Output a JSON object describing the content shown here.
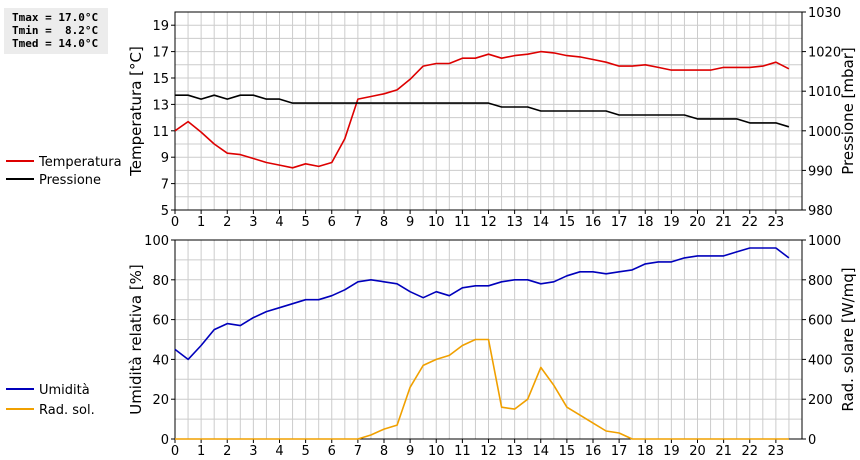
{
  "stats": {
    "tmax": "Tmax = 17.0°C",
    "tmin": "Tmin =  8.2°C",
    "tmed": "Tmed = 14.0°C"
  },
  "colors": {
    "temperature": "#dd0000",
    "pressure": "#000000",
    "humidity": "#0000bb",
    "solar": "#f0a000",
    "grid": "#cccccc"
  },
  "chart_data": [
    {
      "type": "line",
      "x": [
        0,
        0.5,
        1,
        1.5,
        2,
        2.5,
        3,
        3.5,
        4,
        4.5,
        5,
        5.5,
        6,
        6.5,
        7,
        7.5,
        8,
        8.5,
        9,
        9.5,
        10,
        10.5,
        11,
        11.5,
        12,
        12.5,
        13,
        13.5,
        14,
        14.5,
        15,
        15.5,
        16,
        16.5,
        17,
        17.5,
        18,
        18.5,
        19,
        19.5,
        20,
        20.5,
        21,
        21.5,
        22,
        22.5,
        23,
        23.5
      ],
      "xlim": [
        0,
        24
      ],
      "xticks": [
        0,
        1,
        2,
        3,
        4,
        5,
        6,
        7,
        8,
        9,
        10,
        11,
        12,
        13,
        14,
        15,
        16,
        17,
        18,
        19,
        20,
        21,
        22,
        23
      ],
      "ylabel": "Temperatura [°C]",
      "ylim": [
        5,
        20
      ],
      "yticks": [
        5,
        7,
        9,
        11,
        13,
        15,
        17,
        19
      ],
      "y2label": "Pressione [mbar]",
      "y2lim": [
        980,
        1030
      ],
      "y2ticks": [
        980,
        990,
        1000,
        1010,
        1020,
        1030
      ],
      "grid": true,
      "legend_position": "left",
      "series": [
        {
          "name": "Temperatura",
          "axis": "left",
          "color_key": "temperature",
          "values": [
            11.0,
            11.7,
            10.9,
            10.0,
            9.3,
            9.2,
            8.9,
            8.6,
            8.4,
            8.2,
            8.5,
            8.3,
            8.6,
            10.4,
            13.4,
            13.6,
            13.8,
            14.1,
            14.9,
            15.9,
            16.1,
            16.1,
            16.5,
            16.5,
            16.8,
            16.5,
            16.7,
            16.8,
            17.0,
            16.9,
            16.7,
            16.6,
            16.4,
            16.2,
            15.9,
            15.9,
            16.0,
            15.8,
            15.6,
            15.6,
            15.6,
            15.6,
            15.8,
            15.8,
            15.8,
            15.9,
            16.2,
            15.7
          ]
        },
        {
          "name": "Pressione",
          "axis": "right",
          "color_key": "pressure",
          "values": [
            1009,
            1009,
            1008,
            1009,
            1008,
            1009,
            1009,
            1008,
            1008,
            1007,
            1007,
            1007,
            1007,
            1007,
            1007,
            1007,
            1007,
            1007,
            1007,
            1007,
            1007,
            1007,
            1007,
            1007,
            1007,
            1006,
            1006,
            1006,
            1005,
            1005,
            1005,
            1005,
            1005,
            1005,
            1004,
            1004,
            1004,
            1004,
            1004,
            1004,
            1003,
            1003,
            1003,
            1003,
            1002,
            1002,
            1002,
            1001
          ]
        }
      ]
    },
    {
      "type": "line",
      "x": [
        0,
        0.5,
        1,
        1.5,
        2,
        2.5,
        3,
        3.5,
        4,
        4.5,
        5,
        5.5,
        6,
        6.5,
        7,
        7.5,
        8,
        8.5,
        9,
        9.5,
        10,
        10.5,
        11,
        11.5,
        12,
        12.5,
        13,
        13.5,
        14,
        14.5,
        15,
        15.5,
        16,
        16.5,
        17,
        17.5,
        18,
        18.5,
        19,
        19.5,
        20,
        20.5,
        21,
        21.5,
        22,
        22.5,
        23,
        23.5
      ],
      "xlim": [
        0,
        24
      ],
      "xticks": [
        0,
        1,
        2,
        3,
        4,
        5,
        6,
        7,
        8,
        9,
        10,
        11,
        12,
        13,
        14,
        15,
        16,
        17,
        18,
        19,
        20,
        21,
        22,
        23
      ],
      "ylabel": "Umidità relativa [%]",
      "ylim": [
        0,
        100
      ],
      "yticks": [
        0,
        20,
        40,
        60,
        80,
        100
      ],
      "y2label": "Rad. solare [W/mq]",
      "y2lim": [
        0,
        1000
      ],
      "y2ticks": [
        0,
        200,
        400,
        600,
        800,
        1000
      ],
      "grid": true,
      "legend_position": "left",
      "series": [
        {
          "name": "Umidità",
          "axis": "left",
          "color_key": "humidity",
          "values": [
            45,
            40,
            47,
            55,
            58,
            57,
            61,
            64,
            66,
            68,
            70,
            70,
            72,
            75,
            79,
            80,
            79,
            78,
            74,
            71,
            74,
            72,
            76,
            77,
            77,
            79,
            80,
            80,
            78,
            79,
            82,
            84,
            84,
            83,
            84,
            85,
            88,
            89,
            89,
            91,
            92,
            92,
            92,
            94,
            96,
            96,
            96,
            91
          ]
        },
        {
          "name": "Rad. sol.",
          "axis": "right",
          "color_key": "solar",
          "values": [
            0,
            0,
            0,
            0,
            0,
            0,
            0,
            0,
            0,
            0,
            0,
            0,
            0,
            0,
            0,
            20,
            50,
            70,
            260,
            370,
            400,
            420,
            470,
            500,
            500,
            160,
            150,
            200,
            360,
            270,
            160,
            120,
            80,
            40,
            30,
            0,
            0,
            0,
            0,
            0,
            0,
            0,
            0,
            0,
            0,
            0,
            0,
            0
          ]
        }
      ]
    }
  ]
}
